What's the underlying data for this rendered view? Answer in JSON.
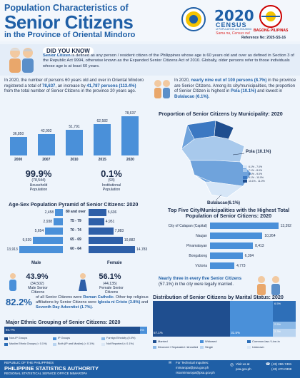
{
  "header": {
    "title_line1": "Population Characteristics of",
    "title_line2": "Senior Citizens",
    "title_line3": "in the Province of Oriental Mindoro",
    "census_number": "2020",
    "census_word": "CENSUS",
    "census_sub": "of POPULATION and HOUSING",
    "census_tagline": "Sama na, Census na!",
    "bagong": "BAGONG PILIPINAS",
    "reference": "Reference No: 2025-SS-16"
  },
  "didyouknow": {
    "label": "DID YOU KNOW",
    "text_a": "Senior Citizen",
    "text_b": " is defined as any person / resident citizen of the Philippines whose age is 60 years old and over as defined in Section 3 of the Republic Act 9994, otherwise known as the Expanded Senior Citizens Act of 2010. Globally, older persons refer to those individuals whose age is at least 60 years."
  },
  "growth": {
    "t1": "In 2020, the number of persons 60 years old and over in Oriental Mindoro registered a total of ",
    "t2": "78,637",
    "t3": ", an increase by ",
    "t4": "41,787 persons (113.4%)",
    "t5": " from the total number of Senior Citizens in the province 20 years ago."
  },
  "growth_chart": {
    "type": "bar",
    "categories": [
      "2000",
      "2007",
      "2010",
      "2015",
      "2020"
    ],
    "values": [
      36850,
      42992,
      51791,
      62582,
      78637
    ],
    "value_labels": [
      "36,850",
      "42,992",
      "51,791",
      "62,582",
      "78,637"
    ],
    "ylim": [
      0,
      80000
    ]
  },
  "share": {
    "t1": "In 2020, ",
    "t2": "nearly nine out of 100 persons (8.7%)",
    "t3": " in the province are Senior Citizens. Among its city/municipalities, the proportion of Senior Citizen is highest in ",
    "t4": "Pola (10.1%)",
    "t5": " and lowest in ",
    "t6": "Bulalacao (6.1%)."
  },
  "map": {
    "heading": "Proportion of Senior Citizens by Municipality: 2020",
    "high_label": "Pola (10.1%)",
    "low_label": "Bulalacao(6.1%)",
    "legend": [
      "6.1% - 7.0%",
      "7.1% - 8.0%",
      "8.1% - 9.0%",
      "9.1% - 10.0%",
      "10.1% - 11.0%"
    ],
    "legend_colors": [
      "#d6e6f7",
      "#a8c9ec",
      "#6fa3dc",
      "#3b78c2",
      "#1f4e8f"
    ]
  },
  "households": {
    "hh_pct": "99.9%",
    "hh_count": "(78,544)",
    "hh_label": "Household Population",
    "inst_pct": "0.1%",
    "inst_count": "(93)",
    "inst_label": "Institutional Population"
  },
  "pyramid": {
    "heading": "Age-Sex Population Pyramid of Senior Citizens: 2020",
    "male_label": "Male",
    "female_label": "Female",
    "age_groups": [
      "80 and over",
      "75 - 79",
      "70 - 74",
      "65 - 69",
      "60 - 64"
    ],
    "male": [
      2458,
      2938,
      5654,
      9539,
      13913
    ],
    "male_labels": [
      "2,458",
      "2,938",
      "5,654",
      "9,539",
      "13,913"
    ],
    "female": [
      5636,
      4951,
      7883,
      10882,
      14783
    ],
    "female_labels": [
      "5,636",
      "4,951",
      "7,883",
      "10,882",
      "14,783"
    ],
    "male_color": "#4a90d9",
    "female_color": "#2e5fa8"
  },
  "sex_ratio": {
    "male_pct": "43.9%",
    "male_count": "(34,502)",
    "male_label": "Male Senior Citizens",
    "female_pct": "56.1%",
    "female_count": "(44,135)",
    "female_label": "Female Senior Citizens"
  },
  "top5": {
    "heading1": "Top Five City/Municipalities with the Highest Total",
    "heading2": "Population of Senior Citizens: 2020",
    "chart_data": {
      "type": "bar",
      "categories": [
        "City of Calapan (Capital)",
        "Naujan",
        "Pinamalayan",
        "Bongabong",
        "Victoria"
      ],
      "values": [
        13392,
        10264,
        8413,
        6394,
        4773
      ],
      "value_labels": [
        "13,392",
        "10,264",
        "8,413",
        "6,394",
        "4,773"
      ]
    }
  },
  "religion": {
    "pct": "82.2%",
    "t1": " of all Senior Citizens were ",
    "t2": "Roman Catholic",
    "t3": ". Other top religious affiliations by Senior Citizens were ",
    "t4": "Iglesia ni Cristo (3.8%)",
    "t5": " and ",
    "t6": "Seventh Day Adventist (1.7%)."
  },
  "marital_text": {
    "t1": "Nearly three in every five Senior Citizens",
    "t2": " (57.1%) in the city were legally married."
  },
  "ethnic": {
    "heading": "Major Ethnic Grouping of Senior Citizens: 2020",
    "bar_main": "94.7%",
    "bar_end": "5%",
    "legend": [
      "Non-IP Groups",
      "IP Groups",
      "Foreign Ethnicity (0.0%)",
      "Muslim Ethnic Groups (< 0.1%)",
      "Both (IP and Muslim) (< 0.1%)",
      "Not Reported (< 0.1%)"
    ],
    "colors": [
      "#1f4e8f",
      "#4a90d9",
      "#8ab8e6",
      "#2e6fb8",
      "#b9d4f0",
      "#dbe7f5"
    ]
  },
  "marital": {
    "heading": "Distribution of Senior Citizens by Marital Status: 2020",
    "chart_data": {
      "type": "bar",
      "categories": [
        "Married",
        "Widowed",
        "Common-law / Live-in",
        "Divorced / Separated / Annulled",
        "Single",
        "Unknown"
      ],
      "values": [
        57.1,
        31.5,
        6.5,
        2.5,
        2.3,
        0.1
      ],
      "value_labels": [
        "57.1%",
        "31.5%",
        "6.5%",
        "2.5%",
        "2.3%",
        ""
      ]
    },
    "colors": [
      "#1f4e8f",
      "#4a90d9",
      "#2e6fb8",
      "#8ab8e6",
      "#b9d4f0",
      "#dbe7f5"
    ]
  },
  "footer": {
    "line1": "REPUBLIC OF THE PHILIPPINES",
    "line2": "PHILIPPINE STATISTICS AUTHORITY",
    "line3": "REGIONAL STATISTICAL SERVICE OFFICE MIMAROPA",
    "tech1": "For Technical Inquiries:",
    "tech2": "mimaropa@psa.gov.ph",
    "tech3": "rssomimaropa@psa.gov.ph",
    "web1": "Visit us at",
    "web2": "psa.gov.ph",
    "phone1": "(43) 286-7491",
    "phone2": "(43) 470-0398"
  }
}
